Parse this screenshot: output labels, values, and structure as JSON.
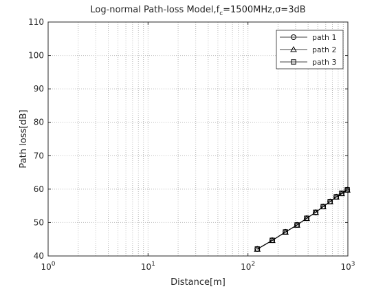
{
  "chart_data": {
    "type": "line",
    "title": [
      "Log-normal Path-loss Model,f",
      "c",
      "=1500MHz,σ=3dB"
    ],
    "x_label": "Distance[m]",
    "y_label": "Path loss[dB]",
    "x_scale": "log",
    "xlim": [
      1,
      1000
    ],
    "xticks": [
      {
        "value": 1,
        "label": "10",
        "exponent": "0"
      },
      {
        "value": 10,
        "label": "10",
        "exponent": "1"
      },
      {
        "value": 100,
        "label": "10",
        "exponent": "2"
      },
      {
        "value": 1000,
        "label": "10",
        "exponent": "3"
      }
    ],
    "ylim": [
      40,
      110
    ],
    "yticks": [
      40,
      50,
      60,
      70,
      80,
      90,
      100,
      110
    ],
    "grid": true,
    "minor_grid": true,
    "legend": "northeast",
    "x": [
      124,
      175,
      237,
      310,
      387,
      476,
      566,
      664,
      765,
      868,
      986
    ],
    "series": [
      {
        "name": "path 1",
        "color": "#000000",
        "marker": "circle",
        "values": [
          42.1,
          44.7,
          47.2,
          49.3,
          51.3,
          53.0,
          54.8,
          56.3,
          57.7,
          58.7,
          59.8
        ]
      },
      {
        "name": "path 2",
        "color": "#000000",
        "marker": "triangle",
        "values": [
          42.0,
          44.6,
          47.1,
          49.2,
          51.2,
          53.0,
          54.7,
          56.2,
          57.6,
          58.6,
          59.7
        ]
      },
      {
        "name": "path 3",
        "color": "#000000",
        "marker": "square",
        "values": [
          42.1,
          44.7,
          47.2,
          49.3,
          51.3,
          53.1,
          54.8,
          56.3,
          57.7,
          58.8,
          59.8
        ]
      }
    ]
  }
}
